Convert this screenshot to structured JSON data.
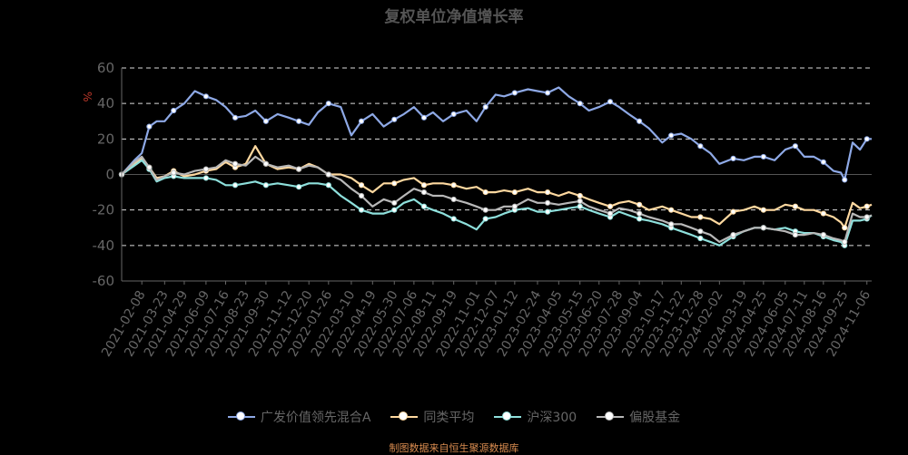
{
  "chart_data": {
    "type": "line",
    "title": "复权单位净值增长率",
    "ylabel": "%",
    "ylim": [
      -60,
      60
    ],
    "yticks": [
      -60,
      -40,
      -20,
      0,
      20,
      40,
      60
    ],
    "grid": true,
    "legend_position": "bottom",
    "source": "制图数据来自恒生聚源数据库",
    "x_tick_labels": [
      "2021-02-08",
      "2021-03-23",
      "2021-04-29",
      "2021-06-09",
      "2021-07-16",
      "2021-08-23",
      "2021-09-30",
      "2021-11-12",
      "2021-12-20",
      "2022-01-26",
      "2022-03-10",
      "2022-04-19",
      "2022-05-30",
      "2022-07-06",
      "2022-08-11",
      "2022-09-19",
      "2022-11-01",
      "2022-12-07",
      "2023-01-12",
      "2023-02-24",
      "2023-04-05",
      "2023-05-15",
      "2023-06-20",
      "2023-07-28",
      "2023-09-04",
      "2023-10-17",
      "2023-11-22",
      "2023-12-28",
      "2024-02-02",
      "2024-03-19",
      "2024-04-25",
      "2024-06-05",
      "2024-07-11",
      "2024-08-16",
      "2024-09-25",
      "2024-11-06"
    ],
    "x": [
      "2021-01-01",
      "2021-01-25",
      "2021-02-08",
      "2021-02-22",
      "2021-03-08",
      "2021-03-23",
      "2021-04-09",
      "2021-04-29",
      "2021-05-19",
      "2021-06-09",
      "2021-06-28",
      "2021-07-16",
      "2021-08-03",
      "2021-08-23",
      "2021-09-10",
      "2021-09-30",
      "2021-10-22",
      "2021-11-12",
      "2021-12-01",
      "2021-12-20",
      "2022-01-06",
      "2022-01-26",
      "2022-02-18",
      "2022-03-10",
      "2022-03-29",
      "2022-04-19",
      "2022-05-10",
      "2022-05-30",
      "2022-06-17",
      "2022-07-06",
      "2022-07-25",
      "2022-08-11",
      "2022-08-30",
      "2022-09-19",
      "2022-10-13",
      "2022-11-01",
      "2022-11-18",
      "2022-12-07",
      "2022-12-23",
      "2023-01-12",
      "2023-02-06",
      "2023-02-24",
      "2023-03-15",
      "2023-04-05",
      "2023-04-24",
      "2023-05-15",
      "2023-06-01",
      "2023-06-20",
      "2023-07-11",
      "2023-07-28",
      "2023-08-15",
      "2023-09-04",
      "2023-09-22",
      "2023-10-17",
      "2023-11-03",
      "2023-11-22",
      "2023-12-11",
      "2023-12-28",
      "2024-01-16",
      "2024-02-02",
      "2024-02-28",
      "2024-03-19",
      "2024-04-08",
      "2024-04-25",
      "2024-05-16",
      "2024-06-05",
      "2024-06-24",
      "2024-07-11",
      "2024-07-29",
      "2024-08-16",
      "2024-09-04",
      "2024-09-18",
      "2024-09-25",
      "2024-10-10",
      "2024-10-24",
      "2024-11-06",
      "2024-11-15"
    ],
    "series": [
      {
        "name": "广发价值领先混合A",
        "color": "#8ea9e6",
        "values": [
          0,
          8,
          12,
          27,
          30,
          30,
          36,
          40,
          47,
          44,
          42,
          38,
          32,
          33,
          36,
          30,
          34,
          32,
          30,
          28,
          35,
          40,
          38,
          22,
          30,
          34,
          27,
          31,
          34,
          38,
          32,
          35,
          30,
          34,
          36,
          30,
          38,
          45,
          44,
          46,
          48,
          47,
          46,
          49,
          44,
          40,
          36,
          38,
          41,
          38,
          34,
          30,
          26,
          18,
          22,
          23,
          20,
          16,
          12,
          6,
          9,
          8,
          10,
          10,
          8,
          14,
          16,
          10,
          10,
          7,
          2,
          1,
          -3,
          18,
          14,
          20,
          20
        ]
      },
      {
        "name": "同类平均",
        "color": "#ffd9a0",
        "values": [
          0,
          6,
          9,
          4,
          -2,
          -1,
          2,
          -1,
          0,
          2,
          3,
          7,
          4,
          6,
          16,
          6,
          3,
          4,
          3,
          6,
          4,
          0,
          0,
          -2,
          -6,
          -10,
          -5,
          -5,
          -3,
          -2,
          -6,
          -5,
          -5,
          -6,
          -8,
          -7,
          -10,
          -10,
          -9,
          -10,
          -8,
          -10,
          -10,
          -12,
          -10,
          -12,
          -14,
          -16,
          -18,
          -16,
          -15,
          -17,
          -20,
          -18,
          -20,
          -22,
          -24,
          -24,
          -25,
          -28,
          -21,
          -20,
          -18,
          -20,
          -20,
          -17,
          -18,
          -20,
          -20,
          -22,
          -24,
          -27,
          -30,
          -16,
          -19,
          -18,
          -17
        ]
      },
      {
        "name": "沪深300",
        "color": "#8ee0dc",
        "values": [
          0,
          5,
          8,
          3,
          -4,
          -2,
          -1,
          -2,
          -2,
          -2,
          -3,
          -6,
          -6,
          -5,
          -4,
          -6,
          -5,
          -6,
          -7,
          -5,
          -5,
          -6,
          -12,
          -16,
          -20,
          -22,
          -22,
          -20,
          -16,
          -14,
          -18,
          -20,
          -22,
          -25,
          -28,
          -31,
          -25,
          -24,
          -22,
          -20,
          -19,
          -21,
          -21,
          -20,
          -19,
          -18,
          -20,
          -22,
          -24,
          -21,
          -23,
          -25,
          -26,
          -28,
          -30,
          -32,
          -34,
          -36,
          -38,
          -40,
          -35,
          -32,
          -30,
          -30,
          -31,
          -30,
          -32,
          -33,
          -33,
          -35,
          -37,
          -38,
          -40,
          -26,
          -26,
          -25,
          -23
        ]
      },
      {
        "name": "偏股基金",
        "color": "#b8b8b8",
        "values": [
          0,
          7,
          10,
          4,
          -3,
          -1,
          1,
          0,
          2,
          3,
          4,
          8,
          6,
          5,
          10,
          6,
          4,
          5,
          3,
          5,
          4,
          0,
          -3,
          -8,
          -12,
          -18,
          -14,
          -16,
          -12,
          -8,
          -10,
          -12,
          -12,
          -14,
          -16,
          -18,
          -20,
          -20,
          -18,
          -18,
          -14,
          -16,
          -16,
          -17,
          -16,
          -15,
          -18,
          -20,
          -22,
          -19,
          -20,
          -22,
          -24,
          -26,
          -28,
          -28,
          -30,
          -32,
          -34,
          -38,
          -34,
          -32,
          -30,
          -30,
          -31,
          -32,
          -34,
          -34,
          -33,
          -34,
          -36,
          -37,
          -38,
          -22,
          -24,
          -24,
          -23
        ]
      }
    ]
  }
}
